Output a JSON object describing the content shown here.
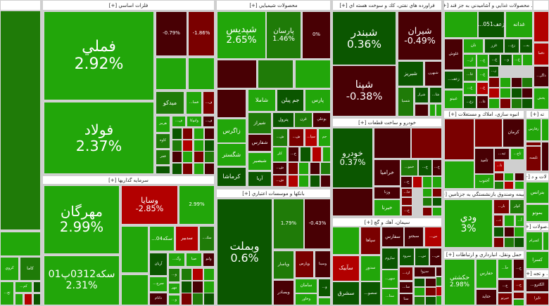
{
  "colors": {
    "up_strong": "#22a60a",
    "up_mid": "#1f7b08",
    "up_weak": "#0b5600",
    "down_strong": "#b20000",
    "down_mid": "#7a0000",
    "down_weak": "#480004"
  },
  "s0": {
    "title": "",
    "tiles": [
      {
        "s": "كروي"
      },
      {
        "s": "كاما"
      },
      {
        "s": "تج..."
      },
      {
        "s": "كم..."
      }
    ]
  },
  "metals": {
    "title": "فلزات اساسي [+]",
    "tiles": [
      {
        "s": "فملي",
        "p": "2.92%"
      },
      {
        "s": "فولاد",
        "p": "2.37%"
      },
      {
        "s": "ميدكو"
      },
      {
        "s": "فسا..."
      },
      {
        "s": "ف..."
      },
      {
        "s": "هرمز"
      },
      {
        "s": "ف..."
      },
      {
        "s": "ولنوكا"
      },
      {
        "s": "ف..."
      },
      {
        "s": "كاوه"
      },
      {
        "s": "فجر"
      },
      {
        "p": "-0.79%"
      },
      {
        "p": "-1.86%"
      }
    ]
  },
  "invest": {
    "title": "سرمايه گذاريها [+]",
    "tiles": [
      {
        "s": "مهرگان",
        "p": "2.99%"
      },
      {
        "s": "سكه0312پ01",
        "p": "2.31%"
      },
      {
        "s": "وسايا",
        "p": "-2.85%"
      },
      {
        "p": "2.99%"
      },
      {
        "s": "سكه04..."
      },
      {
        "s": "سدبير"
      },
      {
        "s": "سك..."
      },
      {
        "s": "آريان"
      },
      {
        "s": "وگ..."
      },
      {
        "s": "صبا"
      },
      {
        "s": "ولنو"
      },
      {
        "s": "سرج..."
      },
      {
        "s": "دانام"
      },
      {
        "s": "و..."
      },
      {
        "s": "مهر"
      },
      {
        "s": "و..."
      }
    ]
  },
  "chem": {
    "title": "محصولات شيميايي [+]",
    "tiles": [
      {
        "s": "شپديس",
        "p": "2.65%"
      },
      {
        "s": "پارسان",
        "p": "1.46%"
      },
      {
        "p": "0%"
      },
      {
        "s": "شاملا"
      },
      {
        "s": "جم پيلن"
      },
      {
        "s": "پارس"
      },
      {
        "s": "زاگرس"
      },
      {
        "s": "شگستر"
      },
      {
        "s": "كرماشا"
      },
      {
        "s": "شيراز"
      },
      {
        "s": "شفارس"
      },
      {
        "s": "شبصير"
      },
      {
        "s": "آريا"
      },
      {
        "s": "پترول"
      },
      {
        "s": "قرن"
      },
      {
        "s": "بوعلي"
      },
      {
        "s": "ش..."
      },
      {
        "s": "ش..."
      },
      {
        "s": "سپا..."
      },
      {
        "s": "جم"
      },
      {
        "s": "كلر"
      },
      {
        "s": "خ..."
      },
      {
        "s": "ش..."
      },
      {
        "s": "ش..."
      }
    ]
  },
  "petro": {
    "title": "فراورده هاي نفتي، كك و سوخت هسته اي [+]",
    "tiles": [
      {
        "s": "شبندر",
        "p": "0.36%"
      },
      {
        "s": "شپنا",
        "p": "-0.38%"
      },
      {
        "s": "شيران",
        "p": "-0.49%"
      },
      {
        "s": "شبريز"
      },
      {
        "s": "شبهرن"
      },
      {
        "s": "شسپا"
      },
      {
        "s": "شراز"
      },
      {
        "s": "شا..."
      }
    ]
  },
  "auto": {
    "title": "خودرو و ساخت قطعات [+]",
    "tiles": [
      {
        "s": "خودرو",
        "p": "0.37%"
      },
      {
        "s": "خراميا"
      },
      {
        "s": "خمو..."
      },
      {
        "s": "خ..."
      },
      {
        "s": "خ..."
      },
      {
        "s": "خ..."
      },
      {
        "s": "وزنا"
      },
      {
        "s": "خبرنا"
      },
      {
        "s": "خا..."
      },
      {
        "s": "خ..."
      }
    ]
  },
  "banks": {
    "title": "بانكها و موسسات اعتباري [+]",
    "tiles": [
      {
        "s": "وبملت",
        "p": "0.6%"
      },
      {
        "p": "1.79%"
      },
      {
        "p": "-0.43%"
      },
      {
        "s": "وپاسار"
      },
      {
        "s": "وپارس"
      },
      {
        "s": "وسينا"
      },
      {
        "s": "وبصادر"
      },
      {
        "s": "سامان"
      },
      {
        "s": "وخاور"
      },
      {
        "s": "و..."
      }
    ]
  },
  "cement": {
    "title": "سيمان، آهك و گچ [+]",
    "tiles": [
      {
        "s": "سپاها"
      },
      {
        "s": "سفارس"
      },
      {
        "s": "سبجنو"
      },
      {
        "s": "س..."
      },
      {
        "s": "سآبيک"
      },
      {
        "s": "سدور"
      },
      {
        "s": "ساروم"
      },
      {
        "s": "سرود"
      },
      {
        "s": "س..."
      },
      {
        "s": "س..."
      },
      {
        "s": "سشرق"
      },
      {
        "s": "سصو..."
      },
      {
        "s": "سهر..."
      },
      {
        "s": "ستا..."
      },
      {
        "s": "ارد..."
      },
      {
        "s": "سا..."
      },
      {
        "s": "ستا"
      },
      {
        "s": "سزوا"
      }
    ]
  },
  "food": {
    "title": "... محصولات غذايي و آشاميدني به جز قند [+]",
    "tiles": [
      {
        "s": "زعف051..."
      },
      {
        "s": "غدانه"
      },
      {
        "s": "غلوش"
      },
      {
        "s": "زعف..."
      },
      {
        "s": "غبينو"
      },
      {
        "s": "نان"
      },
      {
        "s": "غزر"
      },
      {
        "s": "زع..."
      },
      {
        "s": "به..."
      },
      {
        "s": "آر..."
      },
      {
        "s": "غ..."
      },
      {
        "s": "غ..."
      },
      {
        "s": "و..."
      },
      {
        "s": "غ..."
      },
      {
        "s": "غا..."
      },
      {
        "s": "غ..."
      },
      {
        "s": "ز..."
      },
      {
        "s": "غ..."
      },
      {
        "s": "غ..."
      },
      {
        "s": "زع..."
      },
      {
        "s": "عا..."
      }
    ]
  },
  "right": {
    "headers": [
      "",
      "ته [+]",
      "... لات و د [+]",
      "...صولات [+]",
      "... و تجه [+]"
    ],
    "tiles": [
      {
        "s": "دقما"
      },
      {
        "s": "ذاگر..."
      },
      {
        "s": "پخش"
      },
      {
        "s": "زفارس"
      },
      {
        "s": "تليسه"
      },
      {
        "s": "بترانس"
      },
      {
        "s": "بموتو"
      },
      {
        "s": "كسرام"
      },
      {
        "s": "كسرا"
      },
      {
        "s": "الكترو..."
      },
      {
        "s": "تايرا"
      }
    ]
  },
  "build": {
    "title": "انبوه سازي، املاك و مستغلات [+]",
    "tiles": [
      {
        "s": "كرمان"
      },
      {
        "s": "تامید"
      },
      {
        "s": "ثيه..."
      },
      {
        "s": "تاج..."
      },
      {
        "s": "آجنوب"
      },
      {
        "s": "نا..."
      }
    ]
  },
  "insure": {
    "title": "...بيمه وصندوق بازنشستگي به جزتامين [+]",
    "tiles": [
      {
        "s": "ودي",
        "p": "3%"
      },
      {
        "s": "بار..."
      },
      {
        "s": "كولر"
      },
      {
        "s": "د..."
      },
      {
        "s": "آ..."
      }
    ]
  },
  "transport": {
    "title": "حمل ونقل، انبارداري و ارتباطات [+]",
    "tiles": [
      {
        "s": "حكشتي",
        "p": "2.98%"
      },
      {
        "s": "حفارس"
      },
      {
        "s": "حآ..."
      },
      {
        "s": "ح..."
      },
      {
        "s": "حتايد"
      },
      {
        "s": "ح..."
      },
      {
        "s": "حيرتو"
      },
      {
        "s": "ح..."
      }
    ]
  }
}
